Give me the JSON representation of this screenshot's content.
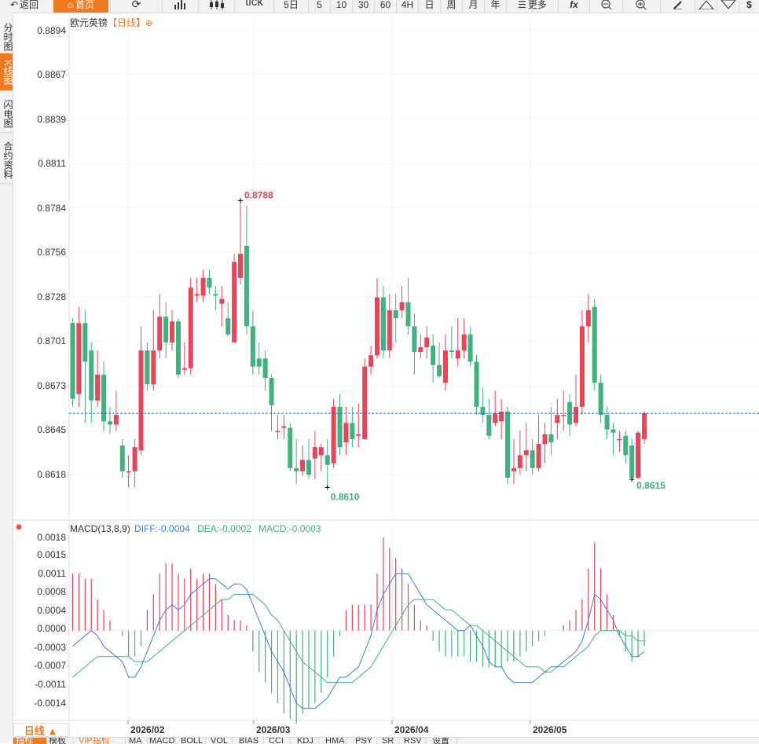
{
  "toolbar": {
    "back_label": "返回",
    "home_label": "首页",
    "tick_label": "tick",
    "five_day_label": "5日",
    "m5_label": "5",
    "m10_label": "10",
    "m30_label": "30",
    "m60_label": "60",
    "h4_label": "4H",
    "day_label": "日",
    "week_label": "周",
    "month_label": "月",
    "year_label": "年",
    "more_label": "更多",
    "fx_label": "fx"
  },
  "leftnav": {
    "timeshare": "分时图",
    "kline": "K线图",
    "flash": "闪电图",
    "contract": "合约资料"
  },
  "chart": {
    "symbol": "欧元英镑",
    "period_tag": "【日线】",
    "high_label": "0.8788",
    "low_label_1": "0.8610",
    "low_label_2": "0.8615",
    "price_ticks": [
      "0.8894",
      "0.8867",
      "0.8839",
      "0.8811",
      "0.8784",
      "0.8756",
      "0.8728",
      "0.8701",
      "0.8673",
      "0.8645",
      "0.8618"
    ],
    "macd_ticks": [
      "0.0018",
      "0.0015",
      "0.0011",
      "0.0008",
      "0.0004",
      "0.0000",
      "-0.0003",
      "-0.0007",
      "-0.0011",
      "-0.0014"
    ],
    "macd_title": "MACD(13,8,9)",
    "diff_label": "DIFF:-0.0004",
    "dea_label": "DEA:-0.0002",
    "macd_label": "MACD:-0.0003",
    "date_labels": [
      "2026/02",
      "2026/03",
      "2026/04",
      "2026/05"
    ],
    "period_button": "日线 ▲",
    "colors": {
      "up": "#e8445a",
      "down": "#3fb27f",
      "diff": "#3a7fd5",
      "dea": "#3fb27f",
      "accent": "#f07a1f",
      "dashed": "#1a6fb0"
    }
  },
  "indicators": [
    "指标",
    "模板",
    "VIP指标",
    "MA",
    "MACD",
    "BOLL",
    "VOL",
    "BIAS",
    "CCI",
    "KDJ",
    "HMA",
    "PSY",
    "SR",
    "RSV",
    "设置"
  ],
  "chart_data": {
    "type": "candlestick",
    "title": "欧元英镑",
    "ylim": [
      0.8605,
      0.89
    ],
    "last_price": 0.8656,
    "candles": [
      [
        0.8712,
        0.8665,
        0.8715,
        0.866
      ],
      [
        0.8668,
        0.8712,
        0.8722,
        0.866
      ],
      [
        0.8712,
        0.8688,
        0.872,
        0.865
      ],
      [
        0.8695,
        0.8664,
        0.87,
        0.865
      ],
      [
        0.8664,
        0.868,
        0.8695,
        0.866
      ],
      [
        0.868,
        0.8651,
        0.8688,
        0.8645
      ],
      [
        0.8651,
        0.8649,
        0.866,
        0.8643
      ],
      [
        0.8649,
        0.8655,
        0.867,
        0.8645
      ],
      [
        0.8636,
        0.862,
        0.864,
        0.8616
      ],
      [
        0.862,
        0.862,
        0.863,
        0.861
      ],
      [
        0.862,
        0.8635,
        0.864,
        0.861
      ],
      [
        0.8633,
        0.8695,
        0.871,
        0.863
      ],
      [
        0.8695,
        0.8674,
        0.87,
        0.867
      ],
      [
        0.8674,
        0.8695,
        0.872,
        0.867
      ],
      [
        0.8695,
        0.8716,
        0.873,
        0.869
      ],
      [
        0.8716,
        0.87,
        0.8725,
        0.869
      ],
      [
        0.87,
        0.8713,
        0.872,
        0.8695
      ],
      [
        0.8713,
        0.868,
        0.8715,
        0.8678
      ],
      [
        0.8683,
        0.8684,
        0.87,
        0.868
      ],
      [
        0.8684,
        0.8734,
        0.874,
        0.868
      ],
      [
        0.8729,
        0.873,
        0.874,
        0.8725
      ],
      [
        0.8729,
        0.874,
        0.8745,
        0.8725
      ],
      [
        0.874,
        0.8734,
        0.8745,
        0.873
      ],
      [
        0.873,
        0.8729,
        0.8735,
        0.872
      ],
      [
        0.8724,
        0.8727,
        0.8735,
        0.871
      ],
      [
        0.8715,
        0.8705,
        0.8725,
        0.8704
      ],
      [
        0.87,
        0.875,
        0.8755,
        0.87
      ],
      [
        0.874,
        0.8755,
        0.8788,
        0.8736
      ],
      [
        0.876,
        0.871,
        0.8785,
        0.8705
      ],
      [
        0.871,
        0.8685,
        0.872,
        0.868
      ],
      [
        0.869,
        0.8685,
        0.87,
        0.868
      ],
      [
        0.869,
        0.8678,
        0.8695,
        0.867
      ],
      [
        0.8678,
        0.8661,
        0.868,
        0.8645
      ],
      [
        0.8645,
        0.8645,
        0.8655,
        0.864
      ],
      [
        0.8647,
        0.8648,
        0.8655,
        0.864
      ],
      [
        0.8647,
        0.8622,
        0.865,
        0.862
      ],
      [
        0.8622,
        0.862,
        0.864,
        0.8612
      ],
      [
        0.862,
        0.8627,
        0.8636,
        0.8617
      ],
      [
        0.8627,
        0.8618,
        0.864,
        0.8615
      ],
      [
        0.8628,
        0.8635,
        0.8645,
        0.8615
      ],
      [
        0.863,
        0.8635,
        0.8637,
        0.862
      ],
      [
        0.863,
        0.8624,
        0.864,
        0.861
      ],
      [
        0.8625,
        0.866,
        0.8665,
        0.8622
      ],
      [
        0.866,
        0.8635,
        0.8668,
        0.863
      ],
      [
        0.8638,
        0.865,
        0.866,
        0.863
      ],
      [
        0.865,
        0.864,
        0.866,
        0.8635
      ],
      [
        0.8642,
        0.8643,
        0.8662,
        0.8635
      ],
      [
        0.864,
        0.8685,
        0.869,
        0.864
      ],
      [
        0.8685,
        0.8692,
        0.8698,
        0.868
      ],
      [
        0.8692,
        0.8728,
        0.874,
        0.869
      ],
      [
        0.8728,
        0.8695,
        0.8735,
        0.869
      ],
      [
        0.8695,
        0.872,
        0.873,
        0.869
      ],
      [
        0.872,
        0.8715,
        0.873,
        0.87
      ],
      [
        0.872,
        0.8725,
        0.8735,
        0.8715
      ],
      [
        0.8725,
        0.871,
        0.874,
        0.8705
      ],
      [
        0.871,
        0.8694,
        0.8718,
        0.868
      ],
      [
        0.8694,
        0.8697,
        0.8705,
        0.869
      ],
      [
        0.8697,
        0.8703,
        0.871,
        0.869
      ],
      [
        0.8698,
        0.8686,
        0.8705,
        0.8675
      ],
      [
        0.8686,
        0.8679,
        0.87,
        0.8678
      ],
      [
        0.8675,
        0.8695,
        0.8705,
        0.867
      ],
      [
        0.8695,
        0.8694,
        0.871,
        0.869
      ],
      [
        0.869,
        0.8695,
        0.8715,
        0.8685
      ],
      [
        0.8695,
        0.8705,
        0.8715,
        0.869
      ],
      [
        0.8705,
        0.8688,
        0.871,
        0.8685
      ],
      [
        0.8688,
        0.866,
        0.8692,
        0.8655
      ],
      [
        0.866,
        0.8655,
        0.8672,
        0.865
      ],
      [
        0.8655,
        0.8642,
        0.8665,
        0.864
      ],
      [
        0.865,
        0.8656,
        0.867,
        0.8648
      ],
      [
        0.8651,
        0.8657,
        0.8665,
        0.864
      ],
      [
        0.8657,
        0.8616,
        0.866,
        0.8612
      ],
      [
        0.862,
        0.8622,
        0.864,
        0.8612
      ],
      [
        0.8622,
        0.863,
        0.8645,
        0.8618
      ],
      [
        0.863,
        0.8633,
        0.865,
        0.862
      ],
      [
        0.8633,
        0.8622,
        0.864,
        0.8618
      ],
      [
        0.8622,
        0.8637,
        0.8655,
        0.862
      ],
      [
        0.8637,
        0.8643,
        0.865,
        0.8625
      ],
      [
        0.8643,
        0.8638,
        0.866,
        0.863
      ],
      [
        0.865,
        0.8655,
        0.8665,
        0.864
      ],
      [
        0.8655,
        0.8655,
        0.867,
        0.8645
      ],
      [
        0.8663,
        0.8649,
        0.8668,
        0.8642
      ],
      [
        0.865,
        0.866,
        0.868,
        0.8648
      ],
      [
        0.866,
        0.871,
        0.872,
        0.8655
      ],
      [
        0.871,
        0.872,
        0.873,
        0.87
      ],
      [
        0.8722,
        0.8675,
        0.8727,
        0.867
      ],
      [
        0.8675,
        0.8655,
        0.868,
        0.865
      ],
      [
        0.8655,
        0.8646,
        0.866,
        0.864
      ],
      [
        0.8646,
        0.8644,
        0.865,
        0.863
      ],
      [
        0.864,
        0.864,
        0.8645,
        0.8632
      ],
      [
        0.8642,
        0.863,
        0.8645,
        0.8625
      ],
      [
        0.8636,
        0.8616,
        0.864,
        0.8615
      ],
      [
        0.8616,
        0.8644,
        0.8645,
        0.8615
      ],
      [
        0.864,
        0.8656,
        0.8657,
        0.8637
      ]
    ],
    "macd": {
      "title": "MACD(13,8,9)",
      "diff": [
        -0.0003,
        -0.0002,
        -0.0001,
        0.0,
        -0.0001,
        -0.0003,
        -0.0004,
        -0.0005,
        -0.0006,
        -0.0009,
        -0.0009,
        -0.0007,
        -0.0004,
        -0.0001,
        0.0002,
        0.0004,
        0.0005,
        0.0004,
        0.0005,
        0.0007,
        0.0008,
        0.0009,
        0.001,
        0.001,
        0.0009,
        0.0008,
        0.0009,
        0.0009,
        0.0008,
        0.0005,
        0.0002,
        -0.0001,
        -0.0004,
        -0.0006,
        -0.0008,
        -0.0011,
        -0.0014,
        -0.0015,
        -0.0015,
        -0.0015,
        -0.0014,
        -0.0013,
        -0.0011,
        -0.0009,
        -0.0009,
        -0.0008,
        -0.0007,
        -0.0004,
        -0.0001,
        0.0004,
        0.0007,
        0.0009,
        0.0011,
        0.0011,
        0.0011,
        0.0009,
        0.0007,
        0.0005,
        0.0004,
        0.0003,
        0.0002,
        0.0001,
        0.0,
        0.0,
        0.0001,
        -0.0001,
        -0.0003,
        -0.0006,
        -0.0007,
        -0.0007,
        -0.0009,
        -0.001,
        -0.001,
        -0.001,
        -0.001,
        -0.0009,
        -0.0008,
        -0.0007,
        -0.0007,
        -0.0006,
        -0.0005,
        -0.0004,
        -0.0002,
        0.0002,
        0.0007,
        0.0006,
        0.0004,
        0.0002,
        -0.0001,
        -0.0003,
        -0.0005,
        -0.0005,
        -0.0004
      ],
      "dea": [
        -0.0009,
        -0.0008,
        -0.0007,
        -0.0006,
        -0.0005,
        -0.0005,
        -0.0005,
        -0.0005,
        -0.0005,
        -0.0005,
        -0.0006,
        -0.0006,
        -0.0006,
        -0.0005,
        -0.0004,
        -0.0003,
        -0.0002,
        -0.0001,
        0.0,
        0.0001,
        0.0002,
        0.0003,
        0.0004,
        0.0005,
        0.0006,
        0.0006,
        0.0007,
        0.0007,
        0.0007,
        0.0007,
        0.0006,
        0.0005,
        0.0003,
        0.0002,
        0.0,
        -0.0002,
        -0.0004,
        -0.0006,
        -0.0007,
        -0.0008,
        -0.0009,
        -0.001,
        -0.001,
        -0.001,
        -0.001,
        -0.001,
        -0.0009,
        -0.0008,
        -0.0007,
        -0.0005,
        -0.0003,
        -0.0001,
        0.0001,
        0.0003,
        0.0005,
        0.0006,
        0.0006,
        0.0006,
        0.0006,
        0.0005,
        0.0004,
        0.0004,
        0.0003,
        0.0002,
        0.0001,
        0.0001,
        0.0,
        -0.0001,
        -0.0002,
        -0.0003,
        -0.0004,
        -0.0005,
        -0.0006,
        -0.0007,
        -0.0007,
        -0.0007,
        -0.0008,
        -0.0008,
        -0.0007,
        -0.0007,
        -0.0006,
        -0.0005,
        -0.0004,
        -0.0003,
        -0.0001,
        0.0,
        0.0,
        0.0,
        0.0,
        -0.0001,
        -0.0001,
        -0.0002,
        -0.0002
      ],
      "hist": [
        0.0011,
        0.0011,
        0.001,
        0.001,
        0.0006,
        0.0004,
        0.0002,
        0.0,
        -0.0001,
        -0.0005,
        -0.0005,
        -0.0003,
        0.0004,
        0.0007,
        0.0011,
        0.0013,
        0.0013,
        0.0011,
        0.001,
        0.0012,
        0.001,
        0.0011,
        0.0011,
        0.0009,
        0.0006,
        0.0003,
        0.0002,
        0.0002,
        0.0001,
        -0.0004,
        -0.0008,
        -0.001,
        -0.0012,
        -0.0014,
        -0.0016,
        -0.0017,
        -0.0018,
        -0.0016,
        -0.0015,
        -0.0014,
        -0.0012,
        -0.0009,
        -0.0005,
        -0.0001,
        0.0004,
        0.0005,
        0.0005,
        0.0005,
        0.0005,
        0.0011,
        0.0018,
        0.0016,
        0.0014,
        0.0012,
        0.0009,
        0.0005,
        0.0002,
        0.0001,
        -0.0002,
        -0.0004,
        -0.0005,
        -0.0005,
        -0.0005,
        -0.0005,
        -0.0006,
        -0.0006,
        -0.0007,
        -0.0007,
        -0.0007,
        -0.0007,
        -0.0006,
        -0.0006,
        -0.0005,
        -0.0004,
        -0.0003,
        -0.0002,
        -0.0001,
        0.0,
        0.0,
        0.0001,
        0.0002,
        0.0004,
        0.0006,
        0.0012,
        0.0017,
        0.0012,
        0.0007,
        0.0003,
        -0.0001,
        -0.0004,
        -0.0006,
        -0.0005,
        -0.0003
      ]
    },
    "ylim_macd": [
      -0.0019,
      0.002
    ],
    "x_ticks": [
      "2026/02",
      "2026/03",
      "2026/04",
      "2026/05"
    ]
  }
}
